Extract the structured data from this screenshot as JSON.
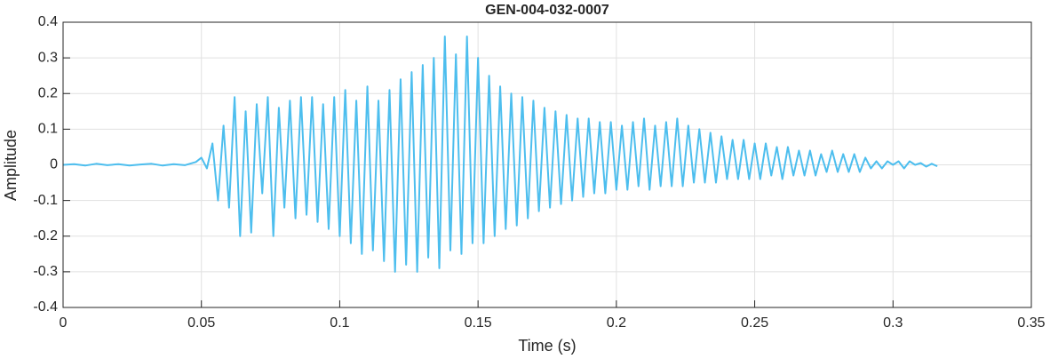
{
  "chart_data": {
    "type": "line",
    "title": "GEN-004-032-0007",
    "x_label": "Time (s)",
    "y_label": "Amplitude",
    "color": "#4dbeee",
    "grid": true,
    "xlim": [
      0,
      0.35
    ],
    "xticks": [
      0,
      0.05,
      0.1,
      0.15,
      0.2,
      0.25,
      0.3,
      0.35
    ],
    "ylim": [
      -0.4,
      0.4
    ],
    "yticks": [
      -0.4,
      -0.3,
      -0.2,
      -0.1,
      0,
      0.1,
      0.2,
      0.3,
      0.4
    ],
    "x": [
      0,
      0.004,
      0.008,
      0.012,
      0.016,
      0.02,
      0.024,
      0.028,
      0.032,
      0.036,
      0.04,
      0.044,
      0.048,
      0.05,
      0.052,
      0.054,
      0.056,
      0.058,
      0.06,
      0.062,
      0.064,
      0.066,
      0.068,
      0.07,
      0.072,
      0.074,
      0.076,
      0.078,
      0.08,
      0.082,
      0.084,
      0.086,
      0.088,
      0.09,
      0.092,
      0.094,
      0.096,
      0.098,
      0.1,
      0.102,
      0.104,
      0.106,
      0.108,
      0.11,
      0.112,
      0.114,
      0.116,
      0.118,
      0.12,
      0.122,
      0.124,
      0.126,
      0.128,
      0.13,
      0.132,
      0.134,
      0.136,
      0.138,
      0.14,
      0.142,
      0.144,
      0.146,
      0.148,
      0.15,
      0.152,
      0.154,
      0.156,
      0.158,
      0.16,
      0.162,
      0.164,
      0.166,
      0.168,
      0.17,
      0.172,
      0.174,
      0.176,
      0.178,
      0.18,
      0.182,
      0.184,
      0.186,
      0.188,
      0.19,
      0.192,
      0.194,
      0.196,
      0.198,
      0.2,
      0.202,
      0.204,
      0.206,
      0.208,
      0.21,
      0.212,
      0.214,
      0.216,
      0.218,
      0.22,
      0.222,
      0.224,
      0.226,
      0.228,
      0.23,
      0.232,
      0.234,
      0.236,
      0.238,
      0.24,
      0.242,
      0.244,
      0.246,
      0.248,
      0.25,
      0.252,
      0.254,
      0.256,
      0.258,
      0.26,
      0.262,
      0.264,
      0.266,
      0.268,
      0.27,
      0.272,
      0.274,
      0.276,
      0.278,
      0.28,
      0.282,
      0.284,
      0.286,
      0.288,
      0.29,
      0.292,
      0.294,
      0.296,
      0.298,
      0.3,
      0.302,
      0.304,
      0.306,
      0.308,
      0.31,
      0.312,
      0.314,
      0.316
    ],
    "values": [
      0,
      0.002,
      -0.002,
      0.003,
      -0.001,
      0.002,
      -0.002,
      0.001,
      0.003,
      -0.002,
      0.002,
      -0.001,
      0.008,
      0.02,
      -0.01,
      0.06,
      -0.1,
      0.11,
      -0.12,
      0.19,
      -0.2,
      0.15,
      -0.19,
      0.17,
      -0.08,
      0.19,
      -0.2,
      0.16,
      -0.12,
      0.18,
      -0.15,
      0.19,
      -0.14,
      0.19,
      -0.16,
      0.17,
      -0.18,
      0.19,
      -0.2,
      0.21,
      -0.22,
      0.18,
      -0.25,
      0.22,
      -0.24,
      0.18,
      -0.27,
      0.21,
      -0.3,
      0.24,
      -0.28,
      0.26,
      -0.3,
      0.28,
      -0.26,
      0.3,
      -0.29,
      0.36,
      -0.24,
      0.31,
      -0.25,
      0.36,
      -0.22,
      0.3,
      -0.22,
      0.25,
      -0.2,
      0.22,
      -0.18,
      0.2,
      -0.17,
      0.19,
      -0.15,
      0.18,
      -0.13,
      0.16,
      -0.12,
      0.15,
      -0.11,
      0.14,
      -0.1,
      0.13,
      -0.09,
      0.13,
      -0.08,
      0.12,
      -0.08,
      0.12,
      -0.07,
      0.11,
      -0.07,
      0.12,
      -0.06,
      0.13,
      -0.07,
      0.11,
      -0.06,
      0.12,
      -0.06,
      0.13,
      -0.06,
      0.11,
      -0.05,
      0.1,
      -0.05,
      0.09,
      -0.05,
      0.08,
      -0.04,
      0.07,
      -0.04,
      0.07,
      -0.04,
      0.06,
      -0.04,
      0.06,
      -0.03,
      0.05,
      -0.04,
      0.05,
      -0.03,
      0.04,
      -0.03,
      0.04,
      -0.03,
      0.03,
      -0.02,
      0.04,
      -0.02,
      0.03,
      -0.02,
      0.03,
      -0.02,
      0.02,
      -0.01,
      0.01,
      -0.01,
      0.01,
      0,
      0.01,
      -0.01,
      0.01,
      0,
      0.005,
      -0.005,
      0.003,
      -0.004
    ]
  }
}
